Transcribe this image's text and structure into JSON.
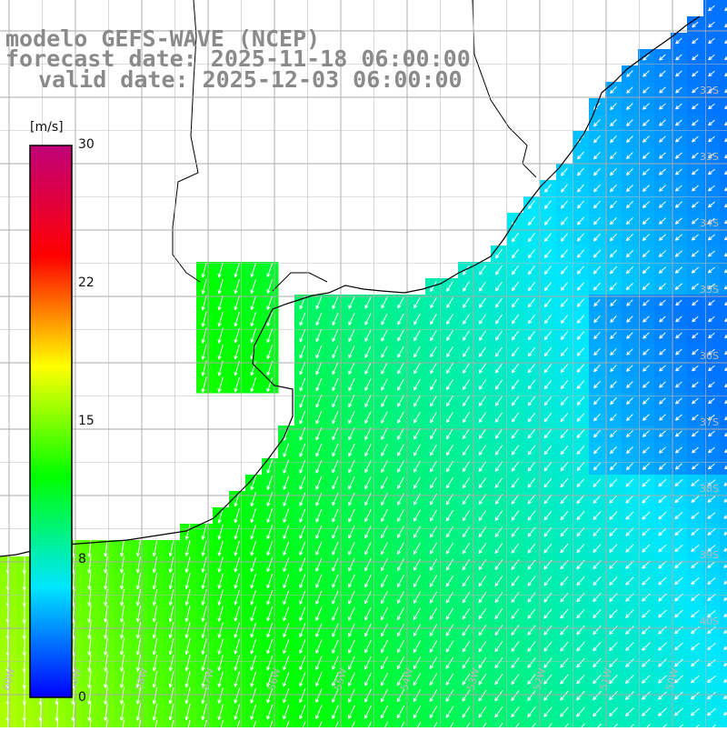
{
  "title": {
    "model": "modelo GEFS-WAVE (NCEP)",
    "forecast": "forecast date: 2025-11-18 06:00:00",
    "valid": "valid date: 2025-12-03 06:00:00"
  },
  "colorbar": {
    "units": "[m/s]",
    "ticks": [
      "30",
      "22",
      "15",
      "8",
      "0"
    ],
    "stops": [
      "#0000ff",
      "#00e6ff",
      "#00ff00",
      "#ffff00",
      "#ff0000",
      "#c0007a"
    ]
  },
  "map": {
    "lat_labels": [
      "32S",
      "33S",
      "34S",
      "35S",
      "36S",
      "37S",
      "38S",
      "39S",
      "40S"
    ],
    "lon_labels": [
      "60W",
      "59W",
      "58W",
      "57W",
      "56W",
      "55W",
      "54W",
      "53W",
      "52W",
      "51W",
      "50W"
    ],
    "land_color": "#ffffff",
    "grid_color": "#999999",
    "coast_color": "#000000",
    "arrow_color": "#ffffff"
  }
}
